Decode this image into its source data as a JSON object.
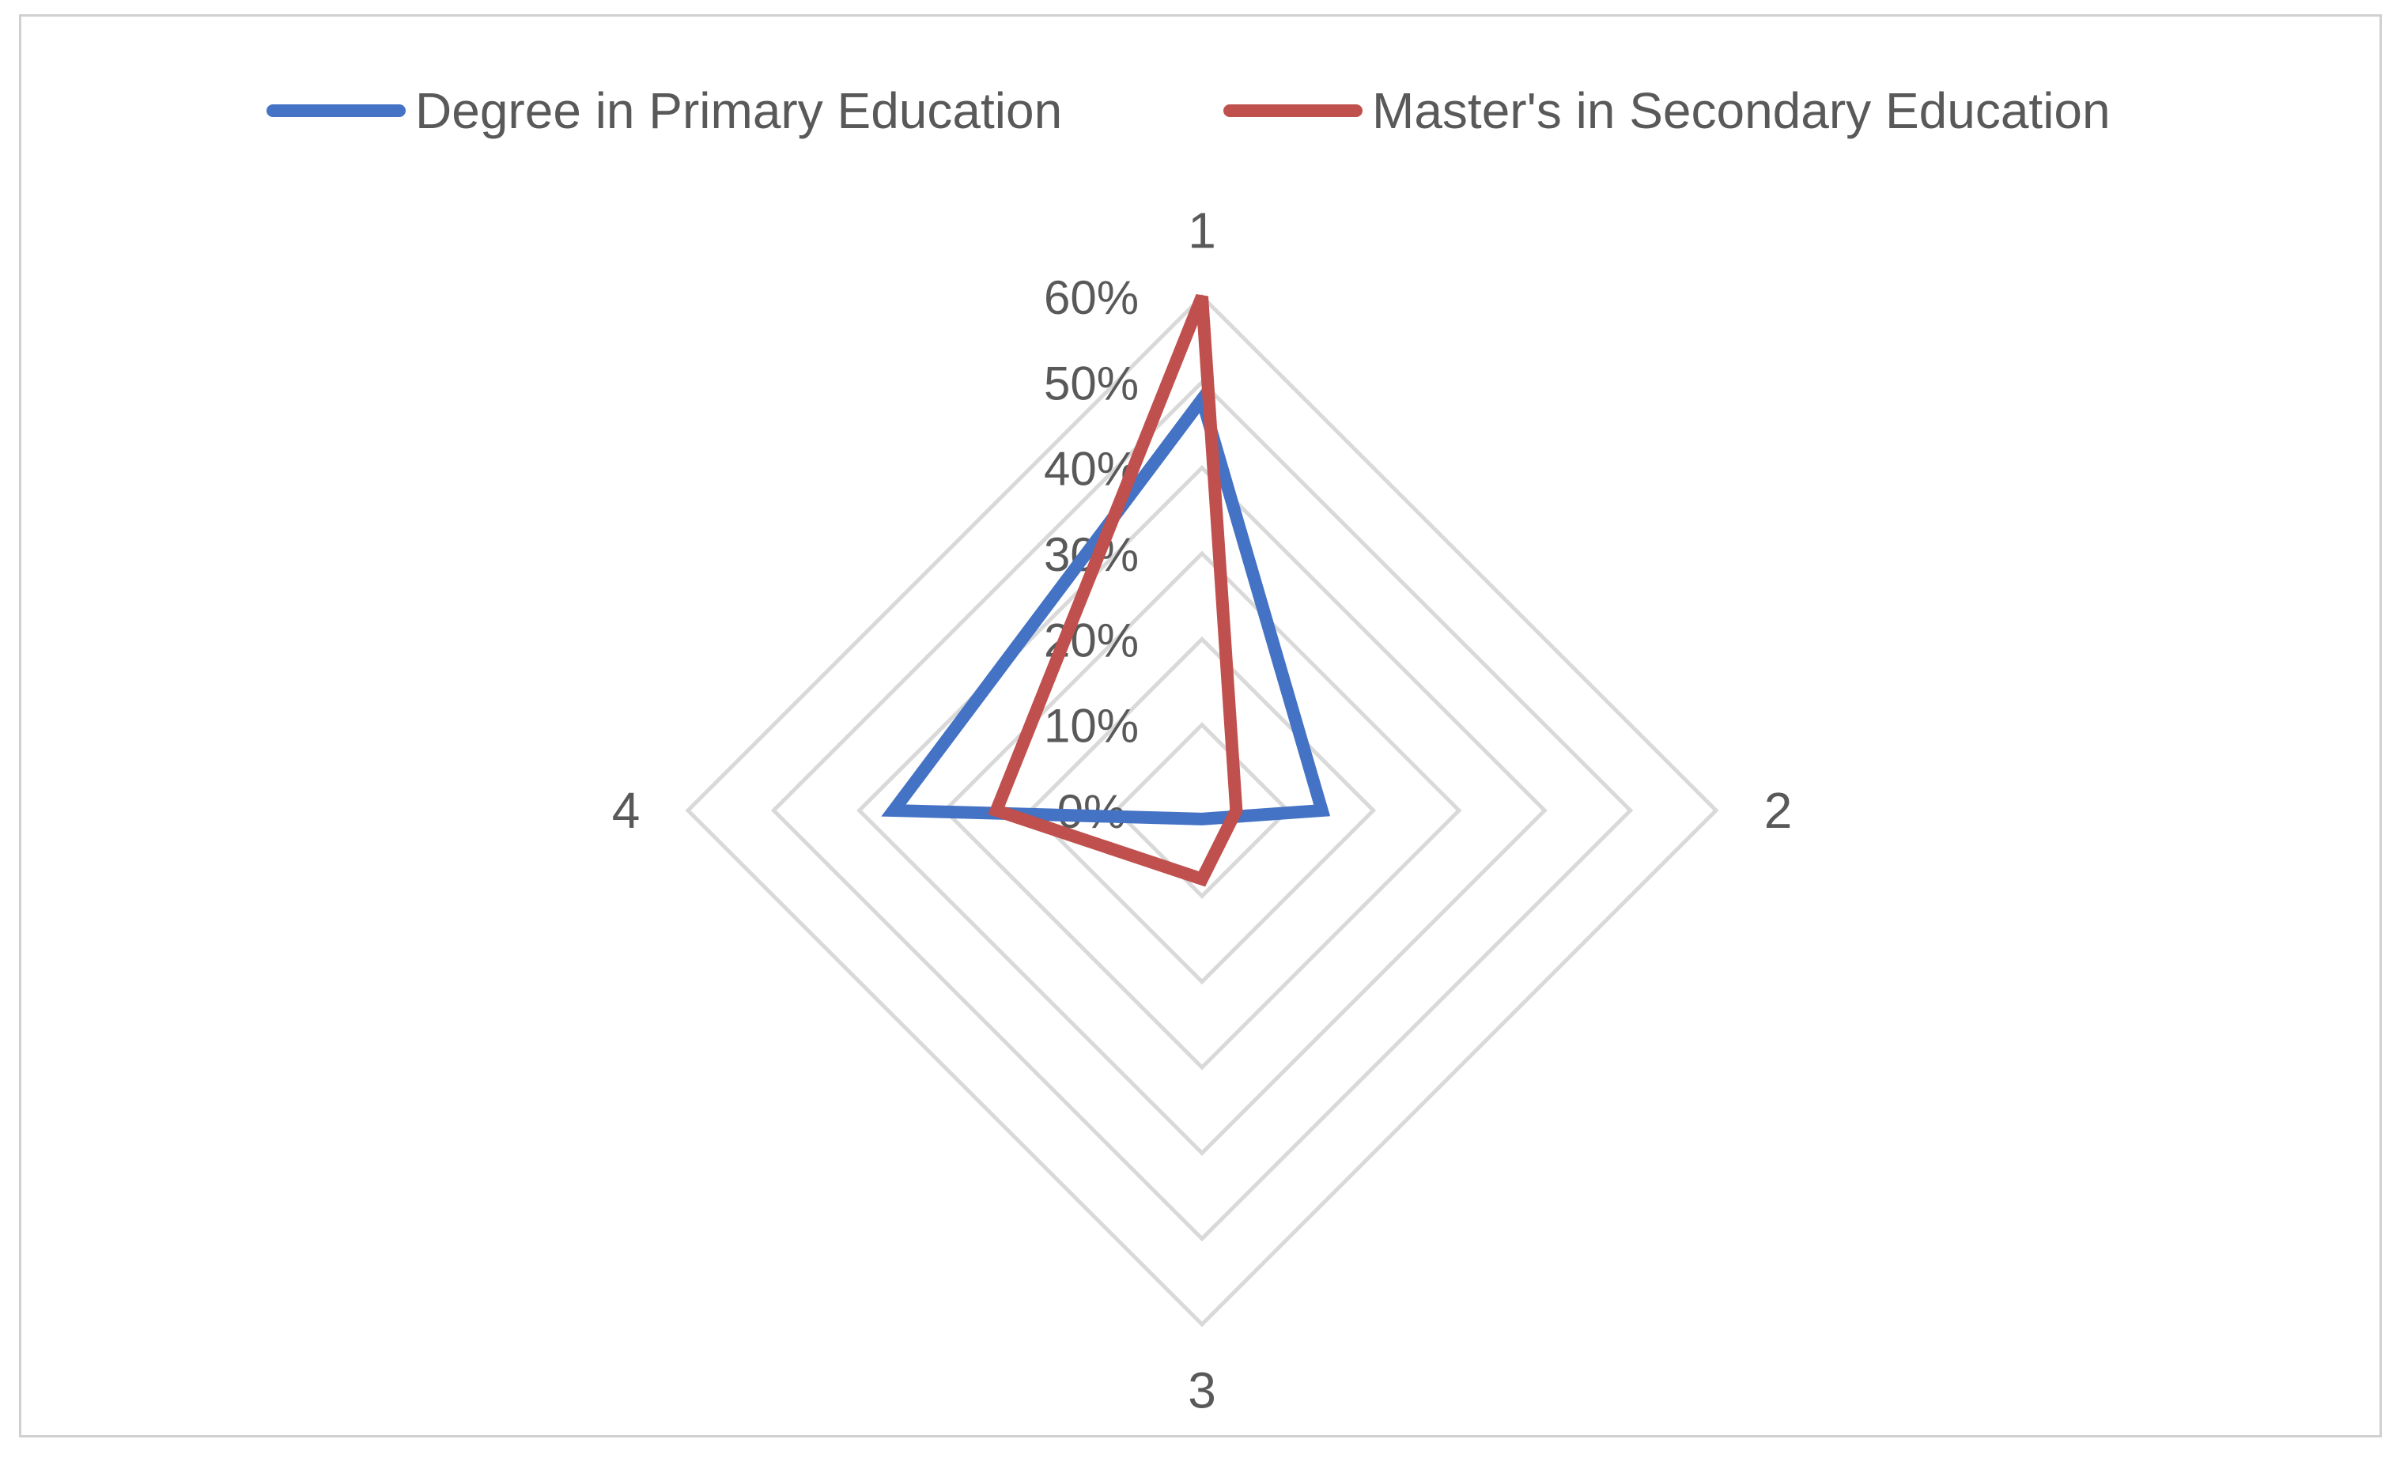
{
  "chart_data": {
    "type": "radar",
    "categories": [
      "1",
      "2",
      "3",
      "4"
    ],
    "series": [
      {
        "name": "Degree in Primary Education",
        "color": "#4472C4",
        "values": [
          0.48,
          0.14,
          0.01,
          0.36
        ]
      },
      {
        "name": "Master's in Secondary Education",
        "color": "#C0504D",
        "values": [
          0.6,
          0.04,
          0.08,
          0.24
        ]
      }
    ],
    "radial_ticks": [
      "0%",
      "10%",
      "20%",
      "30%",
      "40%",
      "50%",
      "60%"
    ],
    "rlim": [
      0,
      0.6
    ],
    "grid": true,
    "legend_position": "top"
  }
}
